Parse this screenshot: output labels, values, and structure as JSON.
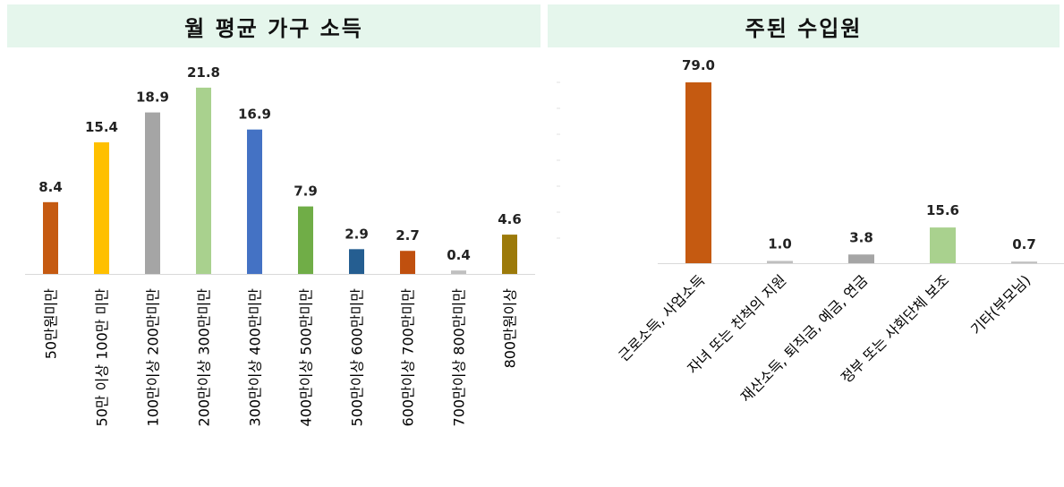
{
  "chart_data": [
    {
      "type": "bar",
      "title": "월 평균 가구 소득",
      "categories": [
        "50만원미만",
        "50만 이상 100만 미만",
        "100만이상 200만미만",
        "200만이상 300만미만",
        "300만이상 400만미만",
        "400만이상 500만미만",
        "500만이상 600만미만",
        "600만이상 700만미만",
        "700만이상 800만미만",
        "800만원이상"
      ],
      "values": [
        8.4,
        15.4,
        18.9,
        21.8,
        16.9,
        7.9,
        2.9,
        2.7,
        0.4,
        4.6
      ],
      "value_labels": [
        "8.4",
        "15.4",
        "18.9",
        "21.8",
        "16.9",
        "7.9",
        "2.9",
        "2.7",
        "0.4",
        "4.6"
      ],
      "colors": [
        "#c55a11",
        "#ffc000",
        "#a5a5a5",
        "#a9d18e",
        "#4472c4",
        "#70ad47",
        "#255e91",
        "#c0500f",
        "#bfbfbf",
        "#9c7a0a"
      ],
      "ylim": [
        0,
        22
      ]
    },
    {
      "type": "bar",
      "title": "주된 수입원",
      "categories": [
        "근로소득, 사업소득",
        "자녀 또는 친척의 지원",
        "재산소득, 퇴직금, 예금, 연금",
        "정부 또는 사회단체 보조",
        "기타(부모님)"
      ],
      "values": [
        79.0,
        1.0,
        3.8,
        15.6,
        0.7
      ],
      "value_labels": [
        "79.0",
        "1.0",
        "3.8",
        "15.6",
        "0.7"
      ],
      "colors": [
        "#c55a11",
        "#bfbfbf",
        "#a5a5a5",
        "#a9d18e",
        "#bfbfbf"
      ],
      "ylim": [
        0,
        79
      ]
    }
  ]
}
